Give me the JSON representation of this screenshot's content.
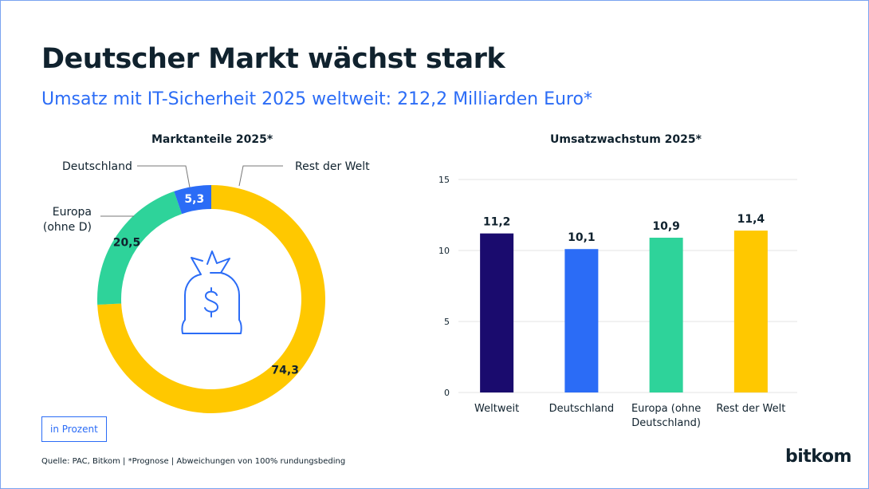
{
  "title": "Deutscher Markt wächst stark",
  "subtitle": "Umsatz mit IT-Sicherheit 2025 weltweit: 212,2 Milliarden Euro*",
  "unit_label": "in Prozent",
  "source": "Quelle: PAC, Bitkom | *Prognose | Abweichungen von 100% rundungsbeding",
  "logo": "bitkom",
  "chart_data": [
    {
      "type": "pie",
      "title": "Marktanteile 2025*",
      "center_icon": "money-bag-dollar-icon",
      "slices": [
        {
          "label": "Rest der Welt",
          "value": 74.3,
          "value_label": "74,3",
          "color": "#ffc800"
        },
        {
          "label": "Europa (ohne D)",
          "label_lines": [
            "Europa",
            "(ohne D)"
          ],
          "value": 20.5,
          "value_label": "20,5",
          "color": "#2ed39a"
        },
        {
          "label": "Deutschland",
          "value": 5.3,
          "value_label": "5,3",
          "color": "#2b6cf6"
        }
      ]
    },
    {
      "type": "bar",
      "title": "Umsatzwachstum 2025*",
      "categories": [
        "Weltweit",
        "Deutschland",
        "Europa (ohne Deutschland)",
        "Rest der Welt"
      ],
      "category_lines": [
        [
          "Weltweit"
        ],
        [
          "Deutschland"
        ],
        [
          "Europa (ohne",
          "Deutschland)"
        ],
        [
          "Rest der Welt"
        ]
      ],
      "values": [
        11.2,
        10.1,
        10.9,
        11.4
      ],
      "value_labels": [
        "11,2",
        "10,1",
        "10,9",
        "11,4"
      ],
      "colors": [
        "#1a0b6e",
        "#2b6cf6",
        "#2ed39a",
        "#ffc800"
      ],
      "ylim": [
        0,
        15
      ],
      "yticks": [
        0,
        5,
        10,
        15
      ],
      "grid": true
    }
  ]
}
